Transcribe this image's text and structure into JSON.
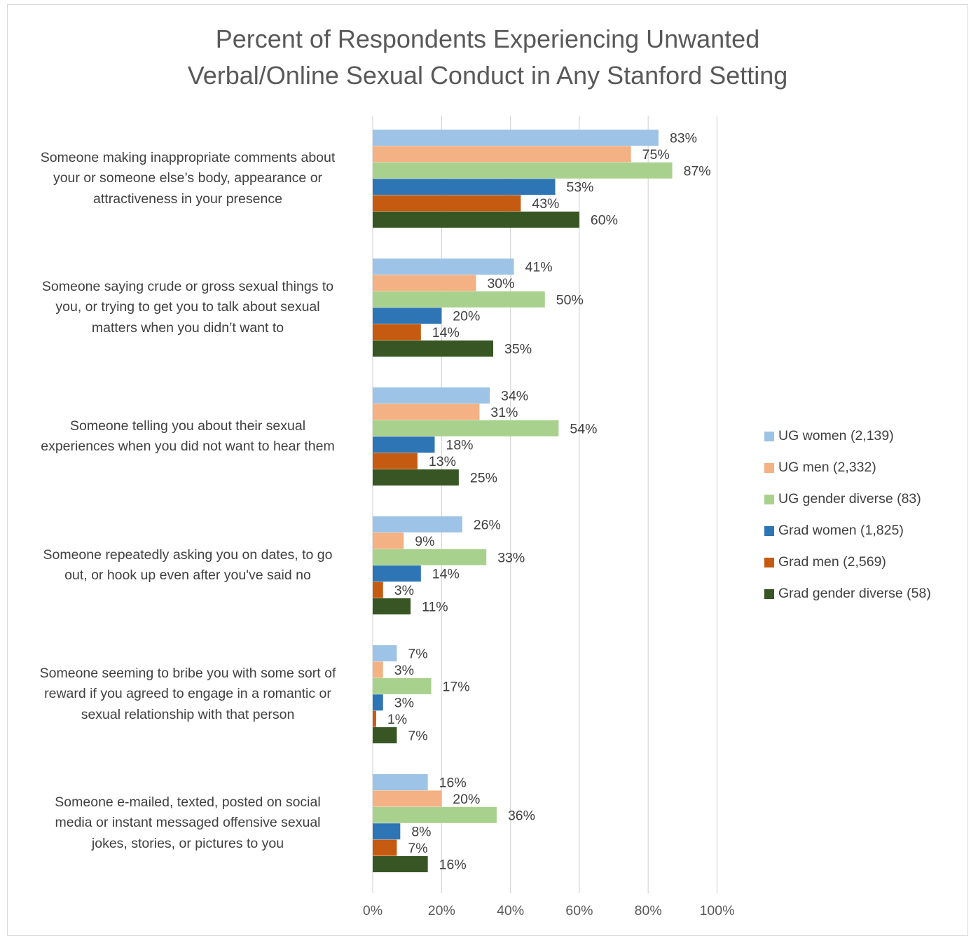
{
  "chart_data": {
    "type": "bar",
    "orientation": "horizontal",
    "title_lines": [
      "Percent of Respondents Experiencing Unwanted",
      "Verbal/Online Sexual Conduct in Any Stanford Setting"
    ],
    "categories": [
      [
        "Someone making inappropriate comments about",
        "your or someone else’s body, appearance or",
        "attractiveness in your presence"
      ],
      [
        "Someone saying crude or gross sexual things to",
        "you, or trying to get you to talk about sexual",
        "matters when you didn’t want to"
      ],
      [
        "Someone telling you about their sexual",
        "experiences when you did not want to hear them"
      ],
      [
        "Someone repeatedly asking you on dates, to go",
        "out, or hook up even after you've said no"
      ],
      [
        "Someone seeming to bribe you with some sort of",
        "reward if you agreed to engage in a romantic or",
        "sexual relationship with that person"
      ],
      [
        "Someone e-mailed, texted, posted on social",
        "media or instant messaged offensive sexual",
        "jokes, stories, or pictures to you"
      ]
    ],
    "series": [
      {
        "name": "UG women (2,139)",
        "color": "#9dc3e6",
        "values": [
          83,
          41,
          34,
          26,
          7,
          16
        ]
      },
      {
        "name": "UG men (2,332)",
        "color": "#f4b183",
        "values": [
          75,
          30,
          31,
          9,
          3,
          20
        ]
      },
      {
        "name": "UG gender diverse (83)",
        "color": "#a9d18e",
        "values": [
          87,
          50,
          54,
          33,
          17,
          36
        ]
      },
      {
        "name": "Grad women (1,825)",
        "color": "#2e75b6",
        "values": [
          53,
          20,
          18,
          14,
          3,
          8
        ]
      },
      {
        "name": "Grad men (2,569)",
        "color": "#c55a11",
        "values": [
          43,
          14,
          13,
          3,
          1,
          7
        ]
      },
      {
        "name": "Grad gender diverse (58)",
        "color": "#375623",
        "values": [
          60,
          35,
          25,
          11,
          7,
          16
        ]
      }
    ],
    "xlim": [
      0,
      100
    ],
    "xticks": [
      0,
      20,
      40,
      60,
      80,
      100
    ],
    "value_suffix": "%",
    "grid": true,
    "legend_position": "right"
  }
}
